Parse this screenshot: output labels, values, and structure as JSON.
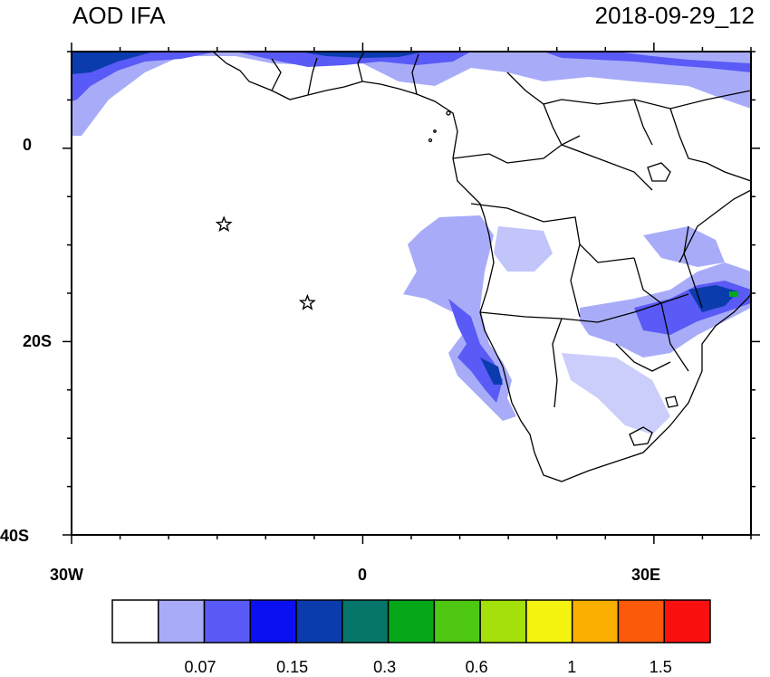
{
  "title": {
    "left": "AOD IFA",
    "right": "2018-09-29_12"
  },
  "axes": {
    "y_labels": [
      "0",
      "20S",
      "40S"
    ],
    "x_labels": [
      "30W",
      "0",
      "30E"
    ]
  },
  "colorbar": {
    "colors": [
      "#ffffff",
      "#a8acf8",
      "#5a5af6",
      "#0a10f2",
      "#0b3cae",
      "#07766a",
      "#06a81a",
      "#4ec812",
      "#a4e00a",
      "#f4f410",
      "#fbb000",
      "#fb5a0a",
      "#fb1010"
    ],
    "labels": [
      "0.07",
      "0.15",
      "0.3",
      "0.6",
      "1",
      "1.5"
    ]
  },
  "markers": [
    {
      "name": "star-marker",
      "lon": -14.3,
      "lat": -7.9
    },
    {
      "name": "star-marker",
      "lon": -5.7,
      "lat": -16.0
    }
  ]
}
